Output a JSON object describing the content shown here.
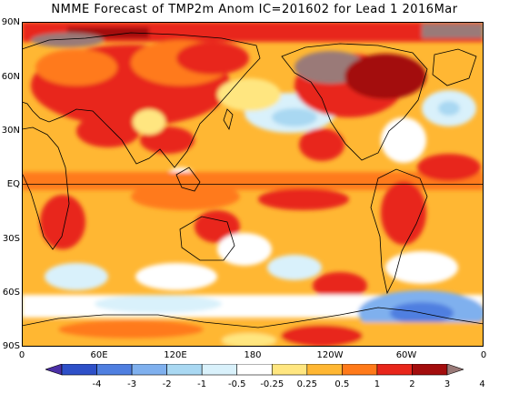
{
  "title": "NMME Forecast of TMP2m Anom IC=201602 for Lead 1 2016Mar",
  "latitude_ticks": [
    "90N",
    "60N",
    "30N",
    "EQ",
    "30S",
    "60S",
    "90S"
  ],
  "longitude_ticks": [
    "0",
    "60E",
    "120E",
    "180",
    "120W",
    "60W",
    "0"
  ],
  "colorbar": {
    "labels": [
      "-4",
      "-3",
      "-2",
      "-1",
      "-0.5",
      "-0.25",
      "0.25",
      "0.5",
      "1",
      "2",
      "3",
      "4"
    ],
    "colors": [
      "#4b2fa6",
      "#2e50c8",
      "#4f7fe0",
      "#7fb0ee",
      "#a9d8f2",
      "#d9f1fb",
      "#ffffff",
      "#ffe680",
      "#ffb733",
      "#ff7a1a",
      "#e8261b",
      "#a30d0d",
      "#9a7a78"
    ]
  },
  "map": {
    "projection": "equirectangular 0-360",
    "variable": "2m temperature anomaly",
    "equator_line": true
  }
}
